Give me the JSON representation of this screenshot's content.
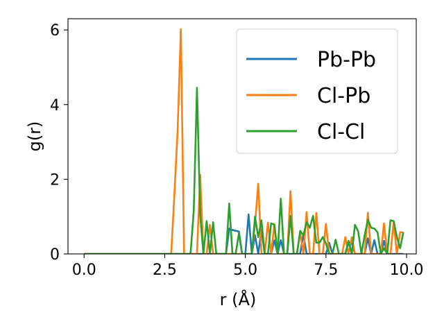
{
  "chart_data": {
    "type": "line",
    "xlabel": "r (Å)",
    "ylabel": "g(r)",
    "xlim": [
      -0.5,
      10.3
    ],
    "ylim": [
      0,
      6.3
    ],
    "xticks": [
      0.0,
      2.5,
      5.0,
      7.5,
      10.0
    ],
    "xtick_labels": [
      "0.0",
      "2.5",
      "5.0",
      "7.5",
      "10.0"
    ],
    "yticks": [
      0,
      2,
      4,
      6
    ],
    "ytick_labels": [
      "0",
      "2",
      "4",
      "6"
    ],
    "grid": false,
    "legend": "top-right",
    "series": [
      {
        "name": "Pb-Pb",
        "color": "#1f77b4",
        "x": [
          0.0,
          4.4,
          4.5,
          4.6,
          4.8,
          4.9,
          5.0,
          5.1,
          5.2,
          5.3,
          5.4,
          5.5,
          5.6,
          5.7,
          5.8,
          5.9,
          6.0,
          6.1,
          6.2,
          6.3,
          6.4,
          6.5,
          6.6,
          6.7,
          6.8,
          6.9,
          7.0,
          7.1,
          7.2,
          7.3,
          7.4,
          7.5,
          7.6,
          7.7,
          7.8,
          7.9,
          8.0,
          8.1,
          8.2,
          8.3,
          8.4,
          8.5,
          8.6,
          8.7,
          8.8,
          8.9,
          9.0,
          9.1,
          9.2,
          9.3,
          9.4,
          9.5,
          9.6,
          9.7,
          9.8,
          9.9
        ],
        "y": [
          0.0,
          0.0,
          0.68,
          0.64,
          0.6,
          0.0,
          0.0,
          1.06,
          0.0,
          0.5,
          0.0,
          0.65,
          0.0,
          0.0,
          0.0,
          0.36,
          0.0,
          0.37,
          0.0,
          0.0,
          0.0,
          0.0,
          0.0,
          0.0,
          0.52,
          0.0,
          0.0,
          0.0,
          0.0,
          0.0,
          0.0,
          0.0,
          0.3,
          0.0,
          0.0,
          0.0,
          0.0,
          0.0,
          0.3,
          0.3,
          0.0,
          0.0,
          0.0,
          0.0,
          0.42,
          0.0,
          0.37,
          0.0,
          0.0,
          0.35,
          0.0,
          0.0,
          0.0,
          0.0,
          0.0,
          0.0
        ]
      },
      {
        "name": "Cl-Pb",
        "color": "#ff7f0e",
        "x": [
          0.0,
          2.7,
          2.8,
          2.9,
          3.0,
          3.1,
          3.5,
          3.6,
          3.7,
          3.8,
          3.9,
          4.0,
          4.1,
          4.2,
          4.3,
          4.4,
          4.5,
          4.6,
          4.7,
          4.8,
          4.9,
          5.0,
          5.1,
          5.2,
          5.3,
          5.4,
          5.5,
          5.6,
          5.7,
          5.8,
          5.9,
          6.0,
          6.1,
          6.2,
          6.3,
          6.4,
          6.5,
          6.6,
          6.7,
          6.8,
          6.9,
          7.0,
          7.1,
          7.2,
          7.3,
          7.4,
          7.5,
          7.6,
          7.7,
          7.8,
          7.9,
          8.0,
          8.1,
          8.2,
          8.3,
          8.4,
          8.5,
          8.6,
          8.7,
          8.8,
          8.9,
          9.0,
          9.1,
          9.2,
          9.3,
          9.4,
          9.5,
          9.6,
          9.7,
          9.8,
          9.9
        ],
        "y": [
          0.0,
          0.0,
          1.6,
          3.3,
          6.02,
          0.0,
          0.0,
          2.12,
          0.0,
          0.0,
          0.78,
          0.0,
          0.0,
          0.0,
          0.0,
          0.0,
          0.0,
          0.0,
          0.0,
          0.0,
          0.0,
          0.0,
          0.0,
          0.0,
          0.8,
          1.88,
          0.0,
          0.0,
          0.84,
          0.0,
          0.8,
          0.0,
          0.0,
          0.0,
          0.0,
          1.68,
          0.0,
          0.0,
          0.58,
          0.0,
          1.12,
          0.0,
          0.0,
          1.1,
          0.0,
          0.0,
          0.8,
          0.0,
          0.0,
          0.0,
          0.0,
          0.0,
          0.45,
          0.0,
          0.45,
          0.0,
          0.0,
          0.0,
          0.0,
          1.1,
          0.0,
          0.0,
          0.0,
          0.0,
          0.82,
          0.0,
          0.0,
          0.85,
          0.0,
          0.58,
          0.58
        ]
      },
      {
        "name": "Cl-Cl",
        "color": "#2ca02c",
        "x": [
          0.0,
          3.3,
          3.4,
          3.5,
          3.6,
          3.7,
          3.8,
          3.9,
          4.0,
          4.1,
          4.2,
          4.3,
          4.4,
          4.5,
          4.6,
          4.7,
          4.8,
          4.9,
          5.0,
          5.1,
          5.2,
          5.3,
          5.4,
          5.5,
          5.6,
          5.7,
          5.8,
          5.9,
          6.0,
          6.1,
          6.2,
          6.3,
          6.4,
          6.5,
          6.6,
          6.7,
          6.8,
          6.9,
          7.0,
          7.1,
          7.2,
          7.3,
          7.4,
          7.5,
          7.6,
          7.7,
          7.8,
          7.9,
          8.0,
          8.1,
          8.2,
          8.3,
          8.4,
          8.5,
          8.6,
          8.7,
          8.8,
          8.9,
          9.0,
          9.1,
          9.2,
          9.3,
          9.4,
          9.5,
          9.6,
          9.7,
          9.8,
          9.9
        ],
        "y": [
          0.0,
          0.0,
          1.15,
          4.45,
          1.05,
          0.0,
          0.88,
          0.0,
          0.85,
          0.0,
          0.0,
          0.0,
          0.0,
          1.35,
          0.0,
          0.0,
          0.55,
          0.0,
          0.0,
          0.0,
          0.0,
          1.0,
          0.45,
          0.9,
          0.0,
          0.0,
          0.82,
          0.78,
          0.0,
          1.48,
          0.0,
          0.0,
          1.02,
          0.0,
          0.0,
          0.62,
          0.5,
          0.85,
          0.7,
          1.02,
          0.3,
          0.3,
          0.45,
          0.28,
          0.0,
          0.0,
          0.38,
          0.0,
          0.0,
          0.0,
          0.35,
          0.0,
          0.78,
          0.6,
          0.0,
          0.5,
          0.92,
          0.7,
          0.68,
          0.58,
          0.0,
          0.15,
          0.0,
          0.9,
          0.88,
          0.45,
          0.15,
          0.58
        ]
      }
    ]
  }
}
